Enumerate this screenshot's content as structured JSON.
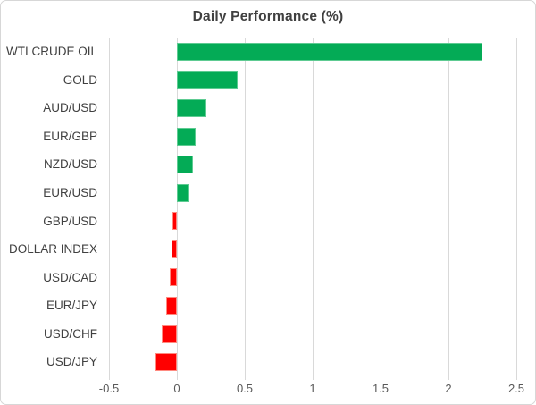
{
  "chart": {
    "title": "Daily Performance (%)"
  },
  "chart_data": {
    "type": "bar",
    "orientation": "horizontal",
    "title": "Daily Performance (%)",
    "categories": [
      "WTI CRUDE OIL",
      "GOLD",
      "AUD/USD",
      "EUR/GBP",
      "NZD/USD",
      "EUR/USD",
      "GBP/USD",
      "DOLLAR INDEX",
      "USD/CAD",
      "EUR/JPY",
      "USD/CHF",
      "USD/JPY"
    ],
    "values": [
      2.25,
      0.45,
      0.22,
      0.14,
      0.12,
      0.09,
      -0.03,
      -0.04,
      -0.05,
      -0.08,
      -0.11,
      -0.16
    ],
    "xlabel": "",
    "ylabel": "",
    "xlim": [
      -0.5,
      2.5
    ],
    "xticks": [
      -0.5,
      0,
      0.5,
      1,
      1.5,
      2,
      2.5
    ],
    "xtick_labels": [
      "-0.5",
      "0",
      "0.5",
      "1",
      "1.5",
      "2",
      "2.5"
    ],
    "grid": true,
    "legend": false,
    "positive_color": "#04AB56",
    "negative_color": "#FF0000",
    "gridline_color": "#D9D9D9",
    "title_color": "#404040",
    "label_color": "#404040",
    "tick_label_color": "#595959"
  }
}
